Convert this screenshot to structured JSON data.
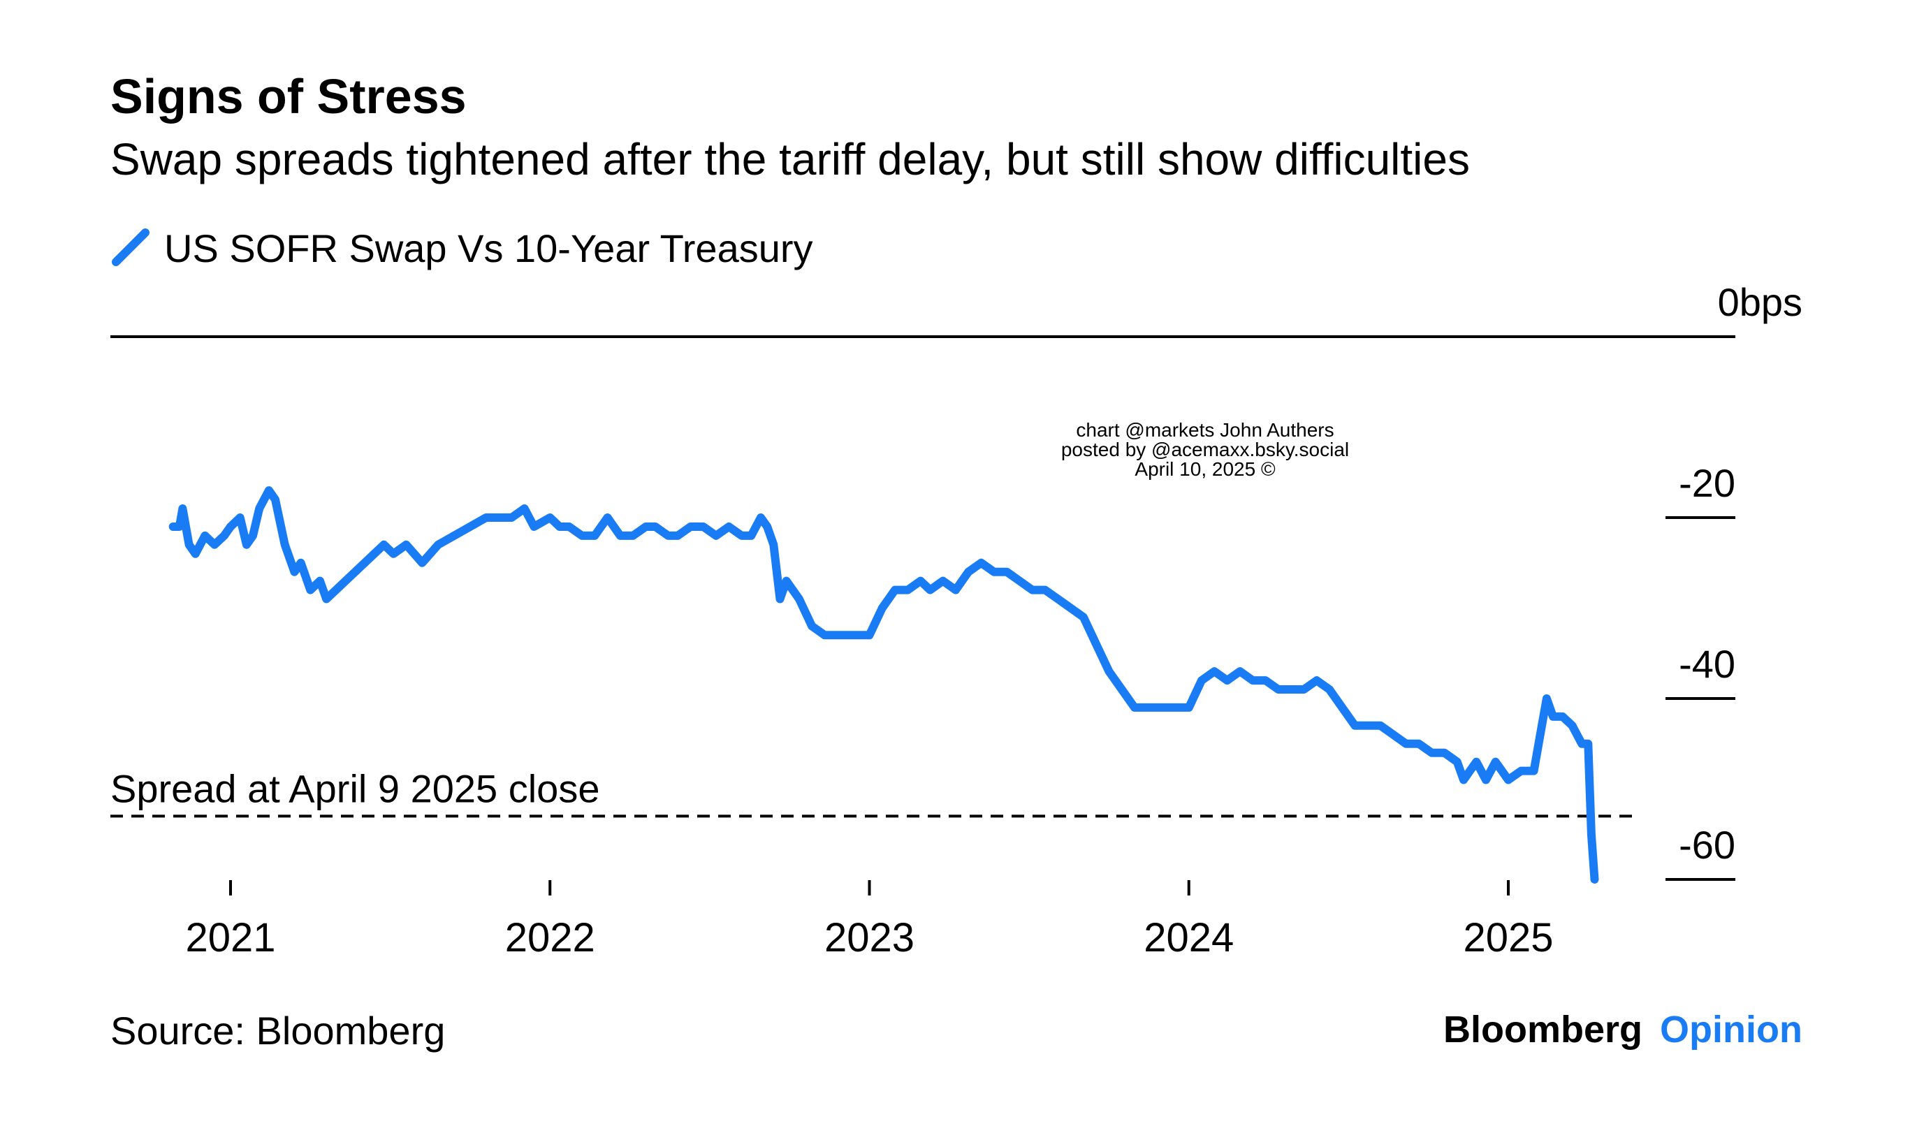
{
  "chart_data": {
    "type": "line",
    "title": "Signs of Stress",
    "subtitle": "Swap spreads tightened after the tariff delay, but still show difficulties",
    "unit_label": "bps",
    "y_ticks": [
      0,
      -20,
      -40,
      -60
    ],
    "y_tick_labels": [
      "0",
      "-20",
      "-40",
      "-60"
    ],
    "ylim": [
      -61,
      0
    ],
    "xlim": [
      2020.63,
      2025.45
    ],
    "x_ticks": [
      2021,
      2022,
      2023,
      2024,
      2025
    ],
    "x_tick_labels": [
      "2021",
      "2022",
      "2023",
      "2024",
      "2025"
    ],
    "legend_position": "top-left",
    "series": [
      {
        "name": "US SOFR Swap Vs 10-Year Treasury",
        "color": "#1a7cf5",
        "x": [
          2020.82,
          2020.84,
          2020.85,
          2020.87,
          2020.89,
          2020.92,
          2020.95,
          2020.98,
          2021.0,
          2021.03,
          2021.05,
          2021.07,
          2021.09,
          2021.12,
          2021.14,
          2021.17,
          2021.2,
          2021.22,
          2021.25,
          2021.28,
          2021.3,
          2021.33,
          2021.36,
          2021.39,
          2021.42,
          2021.45,
          2021.48,
          2021.51,
          2021.55,
          2021.6,
          2021.65,
          2021.7,
          2021.75,
          2021.8,
          2021.84,
          2021.88,
          2021.92,
          2021.95,
          2022.0,
          2022.03,
          2022.06,
          2022.1,
          2022.14,
          2022.18,
          2022.22,
          2022.26,
          2022.3,
          2022.33,
          2022.37,
          2022.4,
          2022.44,
          2022.48,
          2022.52,
          2022.56,
          2022.6,
          2022.63,
          2022.66,
          2022.68,
          2022.7,
          2022.72,
          2022.74,
          2022.78,
          2022.82,
          2022.86,
          2022.9,
          2022.95,
          2023.0,
          2023.04,
          2023.08,
          2023.12,
          2023.16,
          2023.19,
          2023.23,
          2023.27,
          2023.31,
          2023.35,
          2023.39,
          2023.43,
          2023.47,
          2023.51,
          2023.55,
          2023.59,
          2023.63,
          2023.67,
          2023.71,
          2023.75,
          2023.79,
          2023.83,
          2023.87,
          2023.91,
          2023.95,
          2024.0,
          2024.04,
          2024.08,
          2024.12,
          2024.16,
          2024.2,
          2024.24,
          2024.28,
          2024.32,
          2024.36,
          2024.4,
          2024.44,
          2024.48,
          2024.52,
          2024.56,
          2024.6,
          2024.64,
          2024.68,
          2024.72,
          2024.76,
          2024.8,
          2024.84,
          2024.86,
          2024.88,
          2024.9,
          2024.93,
          2024.96,
          2025.0,
          2025.04,
          2025.08,
          2025.1,
          2025.12,
          2025.14,
          2025.17,
          2025.2,
          2025.23,
          2025.25,
          2025.26,
          2025.27
        ],
        "y": [
          -21,
          -21,
          -19,
          -23,
          -24,
          -22,
          -23,
          -22,
          -21,
          -20,
          -23,
          -22,
          -19,
          -17,
          -18,
          -23,
          -26,
          -25,
          -28,
          -27,
          -29,
          -28,
          -27,
          -26,
          -25,
          -24,
          -23,
          -24,
          -23,
          -25,
          -23,
          -22,
          -21,
          -20,
          -20,
          -20,
          -19,
          -21,
          -20,
          -21,
          -21,
          -22,
          -22,
          -20,
          -22,
          -22,
          -21,
          -21,
          -22,
          -22,
          -21,
          -21,
          -22,
          -21,
          -22,
          -22,
          -20,
          -21,
          -23,
          -29,
          -27,
          -29,
          -32,
          -33,
          -33,
          -33,
          -33,
          -30,
          -28,
          -28,
          -27,
          -28,
          -27,
          -28,
          -26,
          -25,
          -26,
          -26,
          -27,
          -28,
          -28,
          -29,
          -30,
          -31,
          -34,
          -37,
          -39,
          -41,
          -41,
          -41,
          -41,
          -41,
          -38,
          -37,
          -38,
          -37,
          -38,
          -38,
          -39,
          -39,
          -39,
          -38,
          -39,
          -41,
          -43,
          -43,
          -43,
          -44,
          -45,
          -45,
          -46,
          -46,
          -47,
          -49,
          -48,
          -47,
          -49,
          -47,
          -49,
          -48,
          -48,
          -44,
          -40,
          -42,
          -42,
          -43,
          -45,
          -45,
          -55,
          -60
        ]
      }
    ],
    "annotation": {
      "label": "Spread at April 9 2025 close",
      "value": -53
    }
  },
  "watermark": [
    "chart @markets John Authers",
    "posted by @acemaxx.bsky.social",
    "April 10, 2025 ©"
  ],
  "footer": {
    "source": "Source: Bloomberg",
    "brand_primary": "Bloomberg",
    "brand_secondary": "Opinion"
  },
  "colors": {
    "series": "#1a7cf5",
    "brand_accent": "#1a7cf5",
    "axis": "#000000",
    "watermark": "#333333"
  }
}
